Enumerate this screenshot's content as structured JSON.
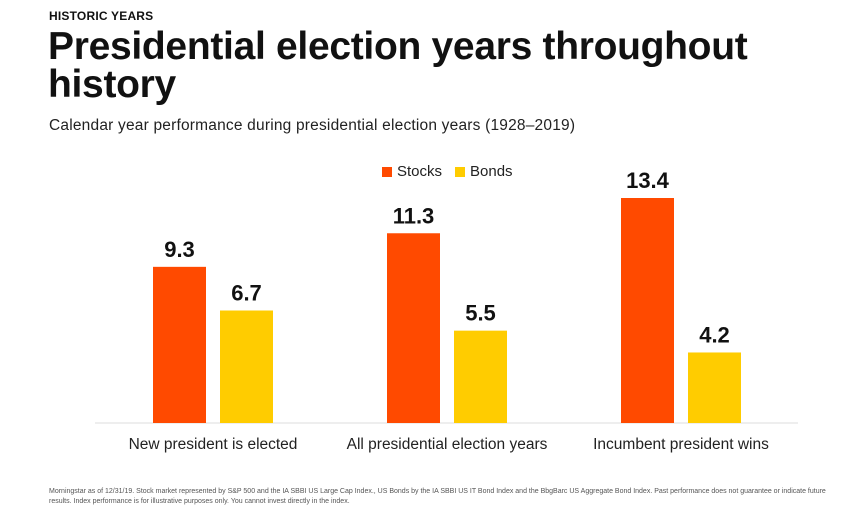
{
  "header": {
    "eyebrow": "HISTORIC YEARS",
    "title": "Presidential election years throughout history",
    "subtitle": "Calendar year performance during presidential election years (1928–2019)"
  },
  "chart_data": {
    "type": "bar",
    "title": "Presidential election years throughout history",
    "subtitle": "Calendar year performance during presidential election years (1928–2019)",
    "categories": [
      "New president is elected",
      "All presidential election years",
      "Incumbent president wins"
    ],
    "series": [
      {
        "name": "Stocks",
        "color": "#ff4a00",
        "values": [
          9.3,
          11.3,
          13.4
        ]
      },
      {
        "name": "Bonds",
        "color": "#ffcc00",
        "values": [
          6.7,
          5.5,
          4.2
        ]
      }
    ],
    "data_labels": [
      "9.3",
      "6.7",
      "11.3",
      "5.5",
      "13.4",
      "4.2"
    ],
    "xlabel": "",
    "ylabel": "",
    "ylim": [
      0,
      13.4
    ],
    "grid": false,
    "legend": "top-center"
  },
  "footnote": "Morningstar as of 12/31/19. Stock market represented by S&P 500 and the IA SBBI US Large Cap Index., US Bonds by the IA SBBI US IT Bond Index and the BbgBarc US Aggregate Bond Index. Past performance does not guarantee or indicate future results. Index performance is for illustrative purposes only. You cannot invest directly in the index."
}
